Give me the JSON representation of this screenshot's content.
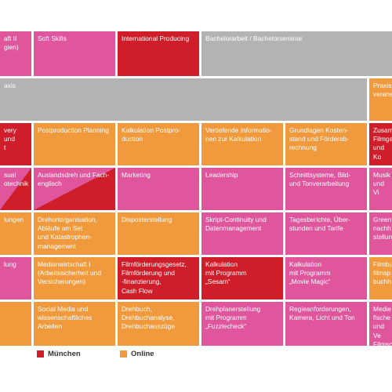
{
  "colors": {
    "pink": "#e0569d",
    "red": "#cf1d2a",
    "orange": "#f19a3d",
    "gray": "#b3b3b3"
  },
  "rows": {
    "r1": {
      "c0": "aft II\ngien)",
      "c1": "Soft Skills",
      "c2": "International Producing",
      "c3": "Bachelorarbeit / Bachelorseminar"
    },
    "r2": {
      "c0": "axis",
      "c6": "Praxis\nveranst"
    },
    "r3": {
      "c0": "very und\nt",
      "c1": "Postproduction Planning",
      "c2": "Kalkulation Postpro-\nduction",
      "c3": "Vertiefende Informatio-\nnen zur Kalkulation",
      "c4": "Grundlagen Kosten-\nstand und Förderab-\nrechnung",
      "c5": "Zusam\nFilmge\nund Ko"
    },
    "r4": {
      "c0": "sual\notechnik",
      "c1": "Auslandsdreh und Fach-\nenglisch",
      "c2": "Marketing",
      "c3": "Leadership",
      "c4": "Schnittsysteme, Bild-\nund Tonverarbeitung",
      "c5": "Musik\nund Vi"
    },
    "r5": {
      "c0": "lungen",
      "c1": "Drehortorganisation,\nAbläufe am Set\nund Katastrophen-\nmanagement",
      "c2": "Disposterstellung",
      "c3": "Skript-Continuity und\nDatenmanagement",
      "c4": "Tagesberichte, Über-\nstunden und Tarife",
      "c5": "Green\nnachh\nstellun"
    },
    "r6": {
      "c0": "lung",
      "c1": "Medienwirtschaft I\n(Arbeitssicherheit und\nVersicherungen)",
      "c2": "Filmförderungsgesetz,\nFilmförderung und\n-finanzierung,\nCash Flow",
      "c3": "Kalkulation\nmit Programm\n„Sesam“",
      "c4": "Kalkulation\nmit Programm\n„Movie Magic“",
      "c5": "Filmbu\nfilmsp\nbuchh"
    },
    "r7": {
      "c0": "",
      "c1": "Social Media und\nwissenschaftliches\nArbeiten",
      "c2": "Drehbuch,\nDrehbuchanalyse,\nDrehbuchauszüge",
      "c3": "Drehplanerstellung\nmit Programm\n„Fuzzlecheck“",
      "c4": "Regieanforderungen,\nKamera, Licht und Ton",
      "c5": "Medie\nfische\nund Ve\nFilmsc"
    }
  },
  "legend": [
    {
      "label": "München",
      "color": "#cf1d2a"
    },
    {
      "label": "Online",
      "color": "#f19a3d"
    }
  ]
}
